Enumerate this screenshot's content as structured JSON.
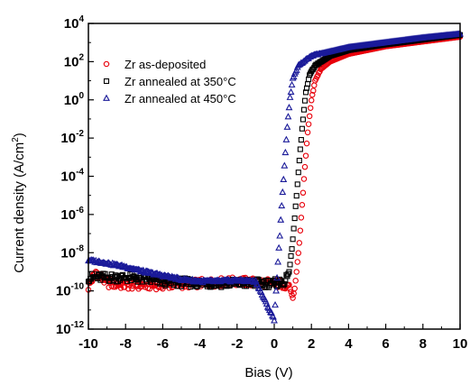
{
  "chart_data": {
    "type": "scatter",
    "title": "",
    "xlabel": "Bias (V)",
    "ylabel": "Current density (A/cm",
    "ylabel_sup": "2",
    "ylabel_close": ")",
    "xlim": [
      -10,
      10
    ],
    "ylim_exp": [
      -12,
      4
    ],
    "y_scale": "log",
    "grid": false,
    "legend_position": "top-left",
    "xticks": [
      -10,
      -8,
      -6,
      -4,
      -2,
      0,
      2,
      4,
      6,
      8,
      10
    ],
    "xtick_labels": [
      "-10",
      "-8",
      "-6",
      "-4",
      "-2",
      "0",
      "2",
      "4",
      "6",
      "8",
      "10"
    ],
    "ytick_exps": [
      -12,
      -10,
      -8,
      -6,
      -4,
      -2,
      0,
      2,
      4
    ],
    "ytick_base": "10",
    "ytick_exp_labels": [
      "-12",
      "-10",
      "-8",
      "-6",
      "-4",
      "-2",
      "0",
      "2",
      "4"
    ],
    "series": [
      {
        "name": "Zr as-deposited",
        "marker": "circle",
        "color": "#e8000b",
        "anchors": [
          [
            -10,
            -9.8
          ],
          [
            -9.6,
            -9.0
          ],
          [
            -9,
            -9.6
          ],
          [
            -8,
            -9.7
          ],
          [
            -6,
            -9.7
          ],
          [
            -4,
            -9.6
          ],
          [
            -2,
            -9.5
          ],
          [
            0,
            -9.6
          ],
          [
            0.8,
            -9.7
          ],
          [
            1.0,
            -10.4
          ],
          [
            1.1,
            -9.9
          ],
          [
            1.2,
            -9.0
          ],
          [
            1.35,
            -7.5
          ],
          [
            1.5,
            -5.5
          ],
          [
            1.65,
            -3.5
          ],
          [
            1.8,
            -1.7
          ],
          [
            2.0,
            0.0
          ],
          [
            2.2,
            1.0
          ],
          [
            2.5,
            1.6
          ],
          [
            3,
            2.0
          ],
          [
            4,
            2.4
          ],
          [
            6,
            2.8
          ],
          [
            8,
            3.05
          ],
          [
            10,
            3.3
          ]
        ]
      },
      {
        "name": "Zr annealed at 350°C",
        "marker": "square",
        "color": "#000000",
        "anchors": [
          [
            -10,
            -9.3
          ],
          [
            -8,
            -9.3
          ],
          [
            -6,
            -9.5
          ],
          [
            -4,
            -9.6
          ],
          [
            -2,
            -9.6
          ],
          [
            0,
            -9.6
          ],
          [
            0.6,
            -9.5
          ],
          [
            0.8,
            -9.0
          ],
          [
            0.95,
            -7.8
          ],
          [
            1.1,
            -6.2
          ],
          [
            1.25,
            -4.4
          ],
          [
            1.4,
            -2.6
          ],
          [
            1.55,
            -1.0
          ],
          [
            1.7,
            0.4
          ],
          [
            1.9,
            1.3
          ],
          [
            2.2,
            1.8
          ],
          [
            3,
            2.3
          ],
          [
            4,
            2.6
          ],
          [
            6,
            2.9
          ],
          [
            8,
            3.15
          ],
          [
            10,
            3.4
          ]
        ]
      },
      {
        "name": "Zr annealed at 450°C",
        "marker": "triangle",
        "color": "#1a1a99",
        "anchors": [
          [
            -10,
            -8.4
          ],
          [
            -9,
            -8.55
          ],
          [
            -8,
            -8.75
          ],
          [
            -7,
            -9.0
          ],
          [
            -6,
            -9.2
          ],
          [
            -5,
            -9.4
          ],
          [
            -4,
            -9.5
          ],
          [
            -3,
            -9.5
          ],
          [
            -2,
            -9.45
          ],
          [
            -1,
            -9.5
          ],
          [
            0,
            -11.5
          ],
          [
            0.1,
            -10.0
          ],
          [
            0.25,
            -7.8
          ],
          [
            0.4,
            -5.6
          ],
          [
            0.55,
            -3.4
          ],
          [
            0.7,
            -1.4
          ],
          [
            0.85,
            0.1
          ],
          [
            1.0,
            1.1
          ],
          [
            1.3,
            1.8
          ],
          [
            2,
            2.3
          ],
          [
            4,
            2.75
          ],
          [
            6,
            3.0
          ],
          [
            8,
            3.25
          ],
          [
            10,
            3.45
          ]
        ]
      }
    ]
  }
}
